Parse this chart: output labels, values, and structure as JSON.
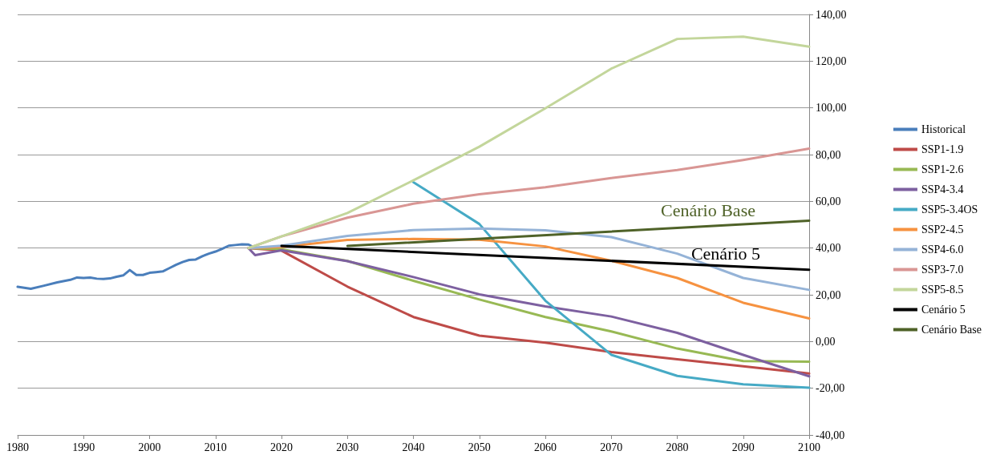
{
  "chart_data": {
    "type": "line",
    "xlim": [
      1980,
      2100
    ],
    "xticks": [
      1980,
      1990,
      2000,
      2010,
      2020,
      2030,
      2040,
      2050,
      2060,
      2070,
      2080,
      2090,
      2100
    ],
    "ylim": [
      -40,
      140
    ],
    "yticks": [
      {
        "value": -40,
        "label": "-40,00"
      },
      {
        "value": -20,
        "label": "-20,00"
      },
      {
        "value": 0,
        "label": "0,00"
      },
      {
        "value": 20,
        "label": "20,00"
      },
      {
        "value": 40,
        "label": "40,00"
      },
      {
        "value": 60,
        "label": "60,00"
      },
      {
        "value": 80,
        "label": "80,00"
      },
      {
        "value": 100,
        "label": "100,00"
      },
      {
        "value": 120,
        "label": "120,00"
      },
      {
        "value": 140,
        "label": "140,00"
      }
    ],
    "grid": "y",
    "legend": "right",
    "marker": "none",
    "line_style": "solid",
    "annotations": [
      "Cenário Base",
      "Cenário 5"
    ],
    "series": [
      {
        "name": "Historical",
        "color": "#4a7ebb",
        "x": [
          1980,
          1982,
          1984,
          1986,
          1988,
          1989,
          1990,
          1991,
          1992,
          1993,
          1994,
          1995,
          1996,
          1997,
          1998,
          1999,
          2000,
          2001,
          2002,
          2003,
          2004,
          2005,
          2006,
          2007,
          2008,
          2009,
          2010,
          2011,
          2012,
          2013,
          2014,
          2015,
          2016
        ],
        "values": [
          23.4,
          22.6,
          23.9,
          25.3,
          26.4,
          27.4,
          27.2,
          27.4,
          26.9,
          26.8,
          27,
          27.7,
          28.3,
          30.6,
          28.5,
          28.5,
          29.4,
          29.7,
          30,
          31.4,
          32.8,
          34,
          34.9,
          35.1,
          36.5,
          37.6,
          38.5,
          39.7,
          41,
          41.3,
          41.6,
          41.5,
          40
        ]
      },
      {
        "name": "SSP1-1.9",
        "color": "#be4b48",
        "x": [
          2015,
          2020,
          2030,
          2040,
          2050,
          2060,
          2070,
          2080,
          2090,
          2100
        ],
        "values": [
          40,
          38.9,
          23.5,
          10.5,
          2.5,
          -0.5,
          -4.5,
          -7.6,
          -10.6,
          -13.7
        ]
      },
      {
        "name": "SSP1-2.6",
        "color": "#98b954",
        "x": [
          2015,
          2020,
          2030,
          2040,
          2050,
          2060,
          2070,
          2080,
          2090,
          2100
        ],
        "values": [
          40,
          39.5,
          34.5,
          26,
          18,
          10.5,
          4.3,
          -3,
          -8.4,
          -8.6
        ]
      },
      {
        "name": "SSP4-3.4",
        "color": "#7d60a0",
        "x": [
          2015,
          2016,
          2020,
          2030,
          2040,
          2050,
          2060,
          2070,
          2080,
          2090,
          2100
        ],
        "values": [
          40,
          37,
          39,
          34.4,
          27.6,
          20.2,
          15,
          10.7,
          3.7,
          -5.7,
          -14.9
        ]
      },
      {
        "name": "SSP5-3.4OS",
        "color": "#46aac5",
        "x": [
          2040,
          2050,
          2060,
          2070,
          2080,
          2090,
          2100
        ],
        "values": [
          68.2,
          50.3,
          17.5,
          -5.7,
          -14.7,
          -18.3,
          -19.8
        ]
      },
      {
        "name": "SSP2-4.5",
        "color": "#f69240",
        "x": [
          2015,
          2020,
          2030,
          2040,
          2050,
          2060,
          2070,
          2080,
          2090,
          2100
        ],
        "values": [
          40,
          40.5,
          43.5,
          43.9,
          43.6,
          40.7,
          34.6,
          27.2,
          16.6,
          9.9
        ]
      },
      {
        "name": "SSP4-6.0",
        "color": "#95b3d7",
        "x": [
          2015,
          2020,
          2030,
          2040,
          2050,
          2060,
          2070,
          2080,
          2090,
          2100
        ],
        "values": [
          40,
          41,
          45.2,
          47.7,
          48.4,
          47.6,
          44.7,
          37.6,
          27.2,
          22.1
        ]
      },
      {
        "name": "SSP3-7.0",
        "color": "#d99694",
        "x": [
          2015,
          2020,
          2030,
          2040,
          2050,
          2060,
          2070,
          2080,
          2090,
          2100
        ],
        "values": [
          40,
          45,
          53,
          59,
          63,
          66,
          70,
          73.4,
          77.7,
          82.6
        ]
      },
      {
        "name": "SSP5-8.5",
        "color": "#c3d69b",
        "x": [
          2015,
          2020,
          2030,
          2040,
          2050,
          2060,
          2070,
          2080,
          2090,
          2100
        ],
        "values": [
          40,
          45,
          55,
          69,
          83.4,
          99.8,
          116.8,
          129.5,
          130.5,
          126.2
        ]
      },
      {
        "name": "Cenário 5",
        "color": "#000000",
        "x": [
          2020,
          2100
        ],
        "values": [
          40.9,
          30.7
        ]
      },
      {
        "name": "Cenário Base",
        "color": "#4f6228",
        "x": [
          2030,
          2100
        ],
        "values": [
          40.9,
          51.7
        ]
      }
    ]
  }
}
